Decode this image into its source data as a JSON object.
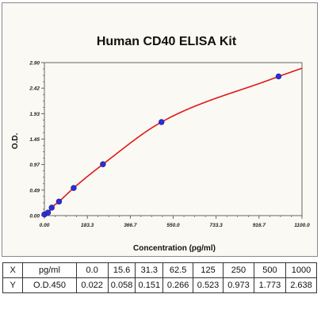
{
  "chart_data": {
    "type": "scatter",
    "title": "Human CD40 ELISA Kit",
    "xlabel": "Concentration (pg/ml)",
    "ylabel": "O.D.",
    "xlim": [
      0,
      1100
    ],
    "ylim": [
      0,
      2.9
    ],
    "x_ticks": [
      "0.00",
      "183.3",
      "366.7",
      "550.0",
      "733.3",
      "916.7",
      "1100.0"
    ],
    "y_ticks": [
      "0.00",
      "0.49",
      "0.97",
      "1.45",
      "1.93",
      "2.42",
      "2.90"
    ],
    "x": [
      0.0,
      15.6,
      31.3,
      62.5,
      125,
      250,
      500,
      1000
    ],
    "y": [
      0.022,
      0.058,
      0.151,
      0.266,
      0.523,
      0.973,
      1.773,
      2.638
    ],
    "marker_color": "#2b2fd6",
    "curve_color": "#e01818",
    "grid": false
  },
  "table": {
    "rows": [
      [
        "X",
        "pg/ml",
        "0.0",
        "15.6",
        "31.3",
        "62.5",
        "125",
        "250",
        "500",
        "1000"
      ],
      [
        "Y",
        "O.D.450",
        "0.022",
        "0.058",
        "0.151",
        "0.266",
        "0.523",
        "0.973",
        "1.773",
        "2.638"
      ]
    ]
  }
}
